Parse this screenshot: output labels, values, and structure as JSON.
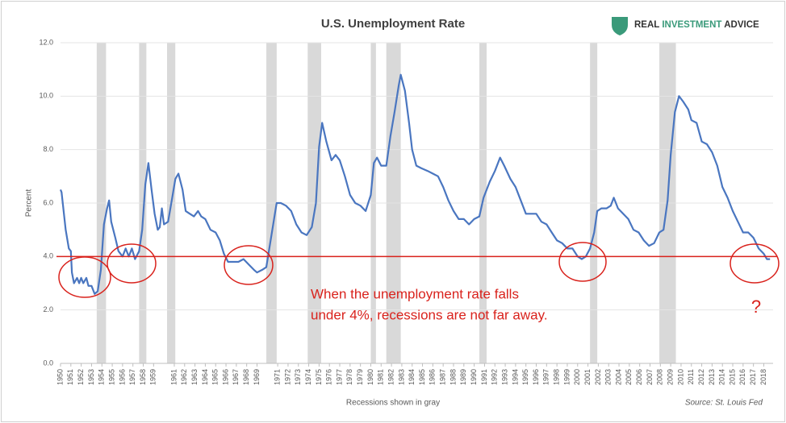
{
  "chart_data": {
    "type": "line",
    "title": "U.S. Unemployment Rate",
    "brand": [
      "REAL",
      "INVESTMENT",
      "ADVICE"
    ],
    "y_label": "Percent",
    "x_note": "Recessions shown in gray",
    "source": "Source: St. Louis Fed",
    "annotation": [
      "When the unemployment rate falls",
      "under 4%, recessions are not far away."
    ],
    "question_mark": "?",
    "color": "#4a76c0",
    "reference_line": 4,
    "reference_color": "#d9221c",
    "recession_color": "#d9d9d9",
    "recessions": [
      [
        1953.5,
        1954.4
      ],
      [
        1957.6,
        1958.3
      ],
      [
        1960.3,
        1961.1
      ],
      [
        1969.9,
        1970.9
      ],
      [
        1973.9,
        1975.2
      ],
      [
        1980.0,
        1980.5
      ],
      [
        1981.5,
        1982.9
      ],
      [
        1990.5,
        1991.2
      ],
      [
        2001.2,
        2001.9
      ],
      [
        2007.9,
        2009.5
      ]
    ],
    "xlim": [
      1950,
      2018.9
    ],
    "ylim": [
      0,
      12
    ],
    "yticks": [
      {
        "value": 0,
        "label": "0.0"
      },
      {
        "value": 2,
        "label": "2.0"
      },
      {
        "value": 4,
        "label": "4.0"
      },
      {
        "value": 6,
        "label": "6.0"
      },
      {
        "value": 8,
        "label": "8.0"
      },
      {
        "value": 10,
        "label": "10.0"
      },
      {
        "value": 12,
        "label": "12.0"
      }
    ],
    "xticks": [
      1950,
      1951,
      1952,
      1953,
      1954,
      1955,
      1956,
      1957,
      1958,
      1959,
      1961,
      1962,
      1963,
      1964,
      1965,
      1966,
      1967,
      1968,
      1969,
      1971,
      1972,
      1973,
      1974,
      1975,
      1976,
      1977,
      1978,
      1979,
      1980,
      1981,
      1982,
      1983,
      1984,
      1985,
      1986,
      1987,
      1988,
      1989,
      1990,
      1991,
      1992,
      1993,
      1994,
      1995,
      1996,
      1997,
      1998,
      1999,
      2000,
      2001,
      2002,
      2003,
      2004,
      2005,
      2006,
      2007,
      2008,
      2009,
      2010,
      2011,
      2012,
      2013,
      2014,
      2015,
      2016,
      2017,
      2018
    ],
    "x": [
      1950.0,
      1950.1,
      1950.5,
      1950.8,
      1951.0,
      1951.1,
      1951.3,
      1951.6,
      1951.8,
      1952.0,
      1952.2,
      1952.5,
      1952.7,
      1953.0,
      1953.3,
      1953.6,
      1953.9,
      1954.2,
      1954.5,
      1954.7,
      1954.9,
      1955.3,
      1955.6,
      1956.0,
      1956.3,
      1956.6,
      1956.9,
      1957.2,
      1957.6,
      1957.9,
      1958.2,
      1958.5,
      1958.8,
      1959.1,
      1959.4,
      1959.6,
      1959.8,
      1960.0,
      1960.4,
      1960.8,
      1961.1,
      1961.4,
      1961.8,
      1962.1,
      1962.5,
      1962.9,
      1963.3,
      1963.6,
      1964.0,
      1964.5,
      1965.0,
      1965.4,
      1965.8,
      1966.2,
      1966.8,
      1967.2,
      1967.7,
      1968.2,
      1968.7,
      1969.0,
      1969.5,
      1969.9,
      1970.4,
      1970.9,
      1971.3,
      1971.8,
      1972.3,
      1972.8,
      1973.3,
      1973.8,
      1974.3,
      1974.7,
      1975.0,
      1975.3,
      1975.7,
      1976.2,
      1976.6,
      1977.0,
      1977.5,
      1978.0,
      1978.5,
      1979.0,
      1979.5,
      1980.0,
      1980.3,
      1980.6,
      1981.0,
      1981.5,
      1981.9,
      1982.3,
      1982.7,
      1982.9,
      1983.3,
      1983.7,
      1984.0,
      1984.4,
      1984.9,
      1985.5,
      1986.0,
      1986.5,
      1987.0,
      1987.5,
      1988.0,
      1988.5,
      1989.0,
      1989.5,
      1990.0,
      1990.5,
      1990.9,
      1991.5,
      1992.0,
      1992.5,
      1992.9,
      1993.5,
      1994.0,
      1994.5,
      1995.0,
      1995.5,
      1996.0,
      1996.5,
      1997.0,
      1997.5,
      1998.0,
      1998.5,
      1999.0,
      1999.5,
      2000.0,
      2000.4,
      2000.8,
      2001.2,
      2001.6,
      2001.9,
      2002.3,
      2002.8,
      2003.2,
      2003.5,
      2003.9,
      2004.4,
      2004.9,
      2005.4,
      2005.9,
      2006.4,
      2006.9,
      2007.4,
      2007.9,
      2008.3,
      2008.7,
      2009.0,
      2009.4,
      2009.8,
      2010.2,
      2010.7,
      2011.0,
      2011.5,
      2012.0,
      2012.5,
      2013.0,
      2013.5,
      2014.0,
      2014.5,
      2015.0,
      2015.5,
      2016.0,
      2016.5,
      2017.0,
      2017.5,
      2018.0,
      2018.3,
      2018.6
    ],
    "values": [
      6.5,
      6.4,
      5.0,
      4.3,
      4.2,
      3.4,
      3.0,
      3.2,
      3.0,
      3.2,
      3.0,
      3.2,
      2.9,
      2.9,
      2.6,
      2.7,
      3.5,
      5.2,
      5.8,
      6.1,
      5.3,
      4.7,
      4.2,
      4.0,
      4.3,
      4.0,
      4.3,
      3.9,
      4.2,
      5.0,
      6.7,
      7.5,
      6.5,
      5.6,
      5.0,
      5.1,
      5.8,
      5.2,
      5.3,
      6.2,
      6.9,
      7.1,
      6.5,
      5.7,
      5.6,
      5.5,
      5.7,
      5.5,
      5.4,
      5.0,
      4.9,
      4.6,
      4.1,
      3.8,
      3.8,
      3.8,
      3.9,
      3.7,
      3.5,
      3.4,
      3.5,
      3.6,
      4.8,
      6.0,
      6.0,
      5.9,
      5.7,
      5.2,
      4.9,
      4.8,
      5.1,
      6.0,
      8.1,
      9.0,
      8.3,
      7.6,
      7.8,
      7.6,
      7.0,
      6.3,
      6.0,
      5.9,
      5.7,
      6.3,
      7.5,
      7.7,
      7.4,
      7.4,
      8.5,
      9.4,
      10.4,
      10.8,
      10.2,
      9.0,
      8.0,
      7.4,
      7.3,
      7.2,
      7.1,
      7.0,
      6.6,
      6.1,
      5.7,
      5.4,
      5.4,
      5.2,
      5.4,
      5.5,
      6.2,
      6.8,
      7.2,
      7.7,
      7.4,
      6.9,
      6.6,
      6.1,
      5.6,
      5.6,
      5.6,
      5.3,
      5.2,
      4.9,
      4.6,
      4.5,
      4.3,
      4.3,
      4.0,
      3.9,
      4.0,
      4.3,
      4.9,
      5.7,
      5.8,
      5.8,
      5.9,
      6.2,
      5.8,
      5.6,
      5.4,
      5.0,
      4.9,
      4.6,
      4.4,
      4.5,
      4.9,
      5.0,
      6.1,
      7.8,
      9.4,
      10.0,
      9.8,
      9.5,
      9.1,
      9.0,
      8.3,
      8.2,
      7.9,
      7.4,
      6.6,
      6.2,
      5.7,
      5.3,
      4.9,
      4.9,
      4.7,
      4.3,
      4.1,
      3.9,
      3.9
    ]
  }
}
